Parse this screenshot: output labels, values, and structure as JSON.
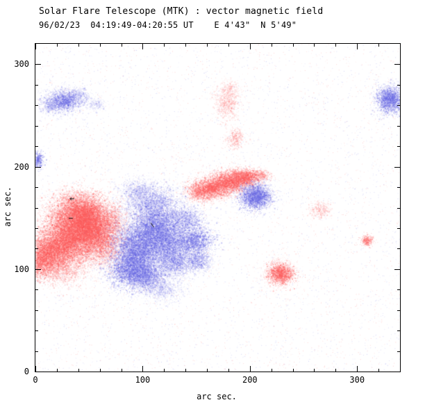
{
  "chart_data": {
    "type": "heatmap",
    "title": "Solar Flare Telescope (MTK) : vector magnetic field",
    "subtitle": "96/02/23  04:19:49-04:20:55 UT    E 4'43\"  N 5'49\"",
    "xlabel": "arc sec.",
    "ylabel": "arc sec.",
    "xlim": [
      0,
      340
    ],
    "ylim": [
      0,
      320
    ],
    "xticks": [
      0,
      100,
      200,
      300
    ],
    "yticks": [
      0,
      100,
      200,
      300
    ],
    "minor_tick_interval": 20,
    "legend": "red = positive magnetic polarity, blue = negative magnetic polarity",
    "colors": {
      "positive": "#fc5a5a",
      "negative": "#6464e1",
      "frame": "#000000",
      "background": "#ffffff"
    },
    "noise": {
      "count": 6000,
      "alpha": 0.3
    },
    "regions": [
      {
        "p": "pos",
        "x": 38,
        "y": 146,
        "sx": 13,
        "sy": 12,
        "n": 6500,
        "a": 0.32
      },
      {
        "p": "pos",
        "x": 52,
        "y": 138,
        "sx": 11,
        "sy": 11,
        "n": 5000,
        "a": 0.32
      },
      {
        "p": "pos",
        "x": 28,
        "y": 126,
        "sx": 12,
        "sy": 10,
        "n": 4500,
        "a": 0.3
      },
      {
        "p": "pos",
        "x": 13,
        "y": 116,
        "sx": 11,
        "sy": 9,
        "n": 3200,
        "a": 0.3
      },
      {
        "p": "pos",
        "x": 4,
        "y": 107,
        "sx": 8,
        "sy": 8,
        "n": 1800,
        "a": 0.3
      },
      {
        "p": "pos",
        "x": 47,
        "y": 157,
        "sx": 10,
        "sy": 8,
        "n": 2600,
        "a": 0.28
      },
      {
        "p": "pos",
        "x": 40,
        "y": 133,
        "sx": 26,
        "sy": 22,
        "n": 3200,
        "a": 0.12
      },
      {
        "p": "pos",
        "x": 62,
        "y": 121,
        "sx": 10,
        "sy": 9,
        "n": 1600,
        "a": 0.22
      },
      {
        "p": "pos",
        "x": 24,
        "y": 99,
        "sx": 11,
        "sy": 7,
        "n": 1100,
        "a": 0.2
      },
      {
        "p": "pos",
        "x": 70,
        "y": 148,
        "sx": 7,
        "sy": 7,
        "n": 900,
        "a": 0.2
      },
      {
        "p": "pos",
        "x": 33,
        "y": 168,
        "sx": 8,
        "sy": 5,
        "n": 500,
        "a": 0.16
      },
      {
        "p": "pos",
        "x": 164,
        "y": 179,
        "sx": 9,
        "sy": 5,
        "n": 2200,
        "a": 0.3
      },
      {
        "p": "pos",
        "x": 181,
        "y": 186,
        "sx": 8,
        "sy": 5,
        "n": 2200,
        "a": 0.3
      },
      {
        "p": "pos",
        "x": 196,
        "y": 190,
        "sx": 6,
        "sy": 4,
        "n": 1400,
        "a": 0.3
      },
      {
        "p": "pos",
        "x": 152,
        "y": 175,
        "sx": 6,
        "sy": 4,
        "n": 800,
        "a": 0.22
      },
      {
        "p": "pos",
        "x": 177,
        "y": 184,
        "sx": 16,
        "sy": 8,
        "n": 900,
        "a": 0.1
      },
      {
        "p": "pos",
        "x": 210,
        "y": 192,
        "sx": 4,
        "sy": 3,
        "n": 350,
        "a": 0.2
      },
      {
        "p": "pos",
        "x": 228,
        "y": 96,
        "sx": 6,
        "sy": 5,
        "n": 1700,
        "a": 0.3
      },
      {
        "p": "pos",
        "x": 228,
        "y": 96,
        "sx": 10,
        "sy": 8,
        "n": 450,
        "a": 0.1
      },
      {
        "p": "pos",
        "x": 178,
        "y": 263,
        "sx": 6,
        "sy": 8,
        "n": 750,
        "a": 0.16
      },
      {
        "p": "pos",
        "x": 181,
        "y": 277,
        "sx": 4,
        "sy": 4,
        "n": 250,
        "a": 0.12
      },
      {
        "p": "pos",
        "x": 186,
        "y": 228,
        "sx": 4,
        "sy": 5,
        "n": 420,
        "a": 0.18
      },
      {
        "p": "pos",
        "x": 265,
        "y": 158,
        "sx": 5,
        "sy": 4,
        "n": 380,
        "a": 0.15
      },
      {
        "p": "pos",
        "x": 309,
        "y": 128,
        "sx": 2.6,
        "sy": 2.6,
        "n": 320,
        "a": 0.3
      },
      {
        "p": "neg",
        "x": 108,
        "y": 131,
        "sx": 21,
        "sy": 23,
        "n": 5200,
        "a": 0.14
      },
      {
        "p": "neg",
        "x": 96,
        "y": 121,
        "sx": 11,
        "sy": 11,
        "n": 4200,
        "a": 0.3
      },
      {
        "p": "neg",
        "x": 112,
        "y": 141,
        "sx": 10,
        "sy": 10,
        "n": 3200,
        "a": 0.3
      },
      {
        "p": "neg",
        "x": 89,
        "y": 100,
        "sx": 10,
        "sy": 9,
        "n": 3200,
        "a": 0.3
      },
      {
        "p": "neg",
        "x": 104,
        "y": 93,
        "sx": 8,
        "sy": 7,
        "n": 1600,
        "a": 0.26
      },
      {
        "p": "neg",
        "x": 124,
        "y": 124,
        "sx": 8,
        "sy": 8,
        "n": 1700,
        "a": 0.28
      },
      {
        "p": "neg",
        "x": 147,
        "y": 128,
        "sx": 9,
        "sy": 7,
        "n": 2100,
        "a": 0.28
      },
      {
        "p": "neg",
        "x": 139,
        "y": 149,
        "sx": 8,
        "sy": 6,
        "n": 1100,
        "a": 0.24
      },
      {
        "p": "neg",
        "x": 110,
        "y": 164,
        "sx": 11,
        "sy": 8,
        "n": 1800,
        "a": 0.24
      },
      {
        "p": "neg",
        "x": 96,
        "y": 176,
        "sx": 8,
        "sy": 6,
        "n": 800,
        "a": 0.18
      },
      {
        "p": "neg",
        "x": 130,
        "y": 106,
        "sx": 8,
        "sy": 6,
        "n": 1300,
        "a": 0.26
      },
      {
        "p": "neg",
        "x": 118,
        "y": 80,
        "sx": 9,
        "sy": 6,
        "n": 700,
        "a": 0.16
      },
      {
        "p": "neg",
        "x": 152,
        "y": 108,
        "sx": 6,
        "sy": 5,
        "n": 800,
        "a": 0.22
      },
      {
        "p": "neg",
        "x": 205,
        "y": 171,
        "sx": 7,
        "sy": 6,
        "n": 2400,
        "a": 0.32
      },
      {
        "p": "neg",
        "x": 205,
        "y": 171,
        "sx": 11,
        "sy": 9,
        "n": 500,
        "a": 0.1
      },
      {
        "p": "neg",
        "x": 27,
        "y": 265,
        "sx": 7,
        "sy": 5,
        "n": 1400,
        "a": 0.28
      },
      {
        "p": "neg",
        "x": 14,
        "y": 261,
        "sx": 5,
        "sy": 4,
        "n": 550,
        "a": 0.2
      },
      {
        "p": "neg",
        "x": 40,
        "y": 269,
        "sx": 5,
        "sy": 4,
        "n": 420,
        "a": 0.16
      },
      {
        "p": "neg",
        "x": 26,
        "y": 264,
        "sx": 12,
        "sy": 8,
        "n": 450,
        "a": 0.1
      },
      {
        "p": "neg",
        "x": 57,
        "y": 262,
        "sx": 4,
        "sy": 3,
        "n": 220,
        "a": 0.14
      },
      {
        "p": "neg",
        "x": 330,
        "y": 266,
        "sx": 6,
        "sy": 6,
        "n": 2000,
        "a": 0.3
      },
      {
        "p": "neg",
        "x": 330,
        "y": 266,
        "sx": 9,
        "sy": 9,
        "n": 400,
        "a": 0.1
      },
      {
        "p": "neg",
        "x": 2,
        "y": 207,
        "sx": 2.5,
        "sy": 4,
        "n": 450,
        "a": 0.3
      }
    ],
    "marks": [
      {
        "type": "arrow",
        "x": 33,
        "y": 169
      },
      {
        "type": "dash",
        "x": 33,
        "y": 150
      },
      {
        "type": "slash",
        "x": 109,
        "y": 143
      }
    ]
  }
}
